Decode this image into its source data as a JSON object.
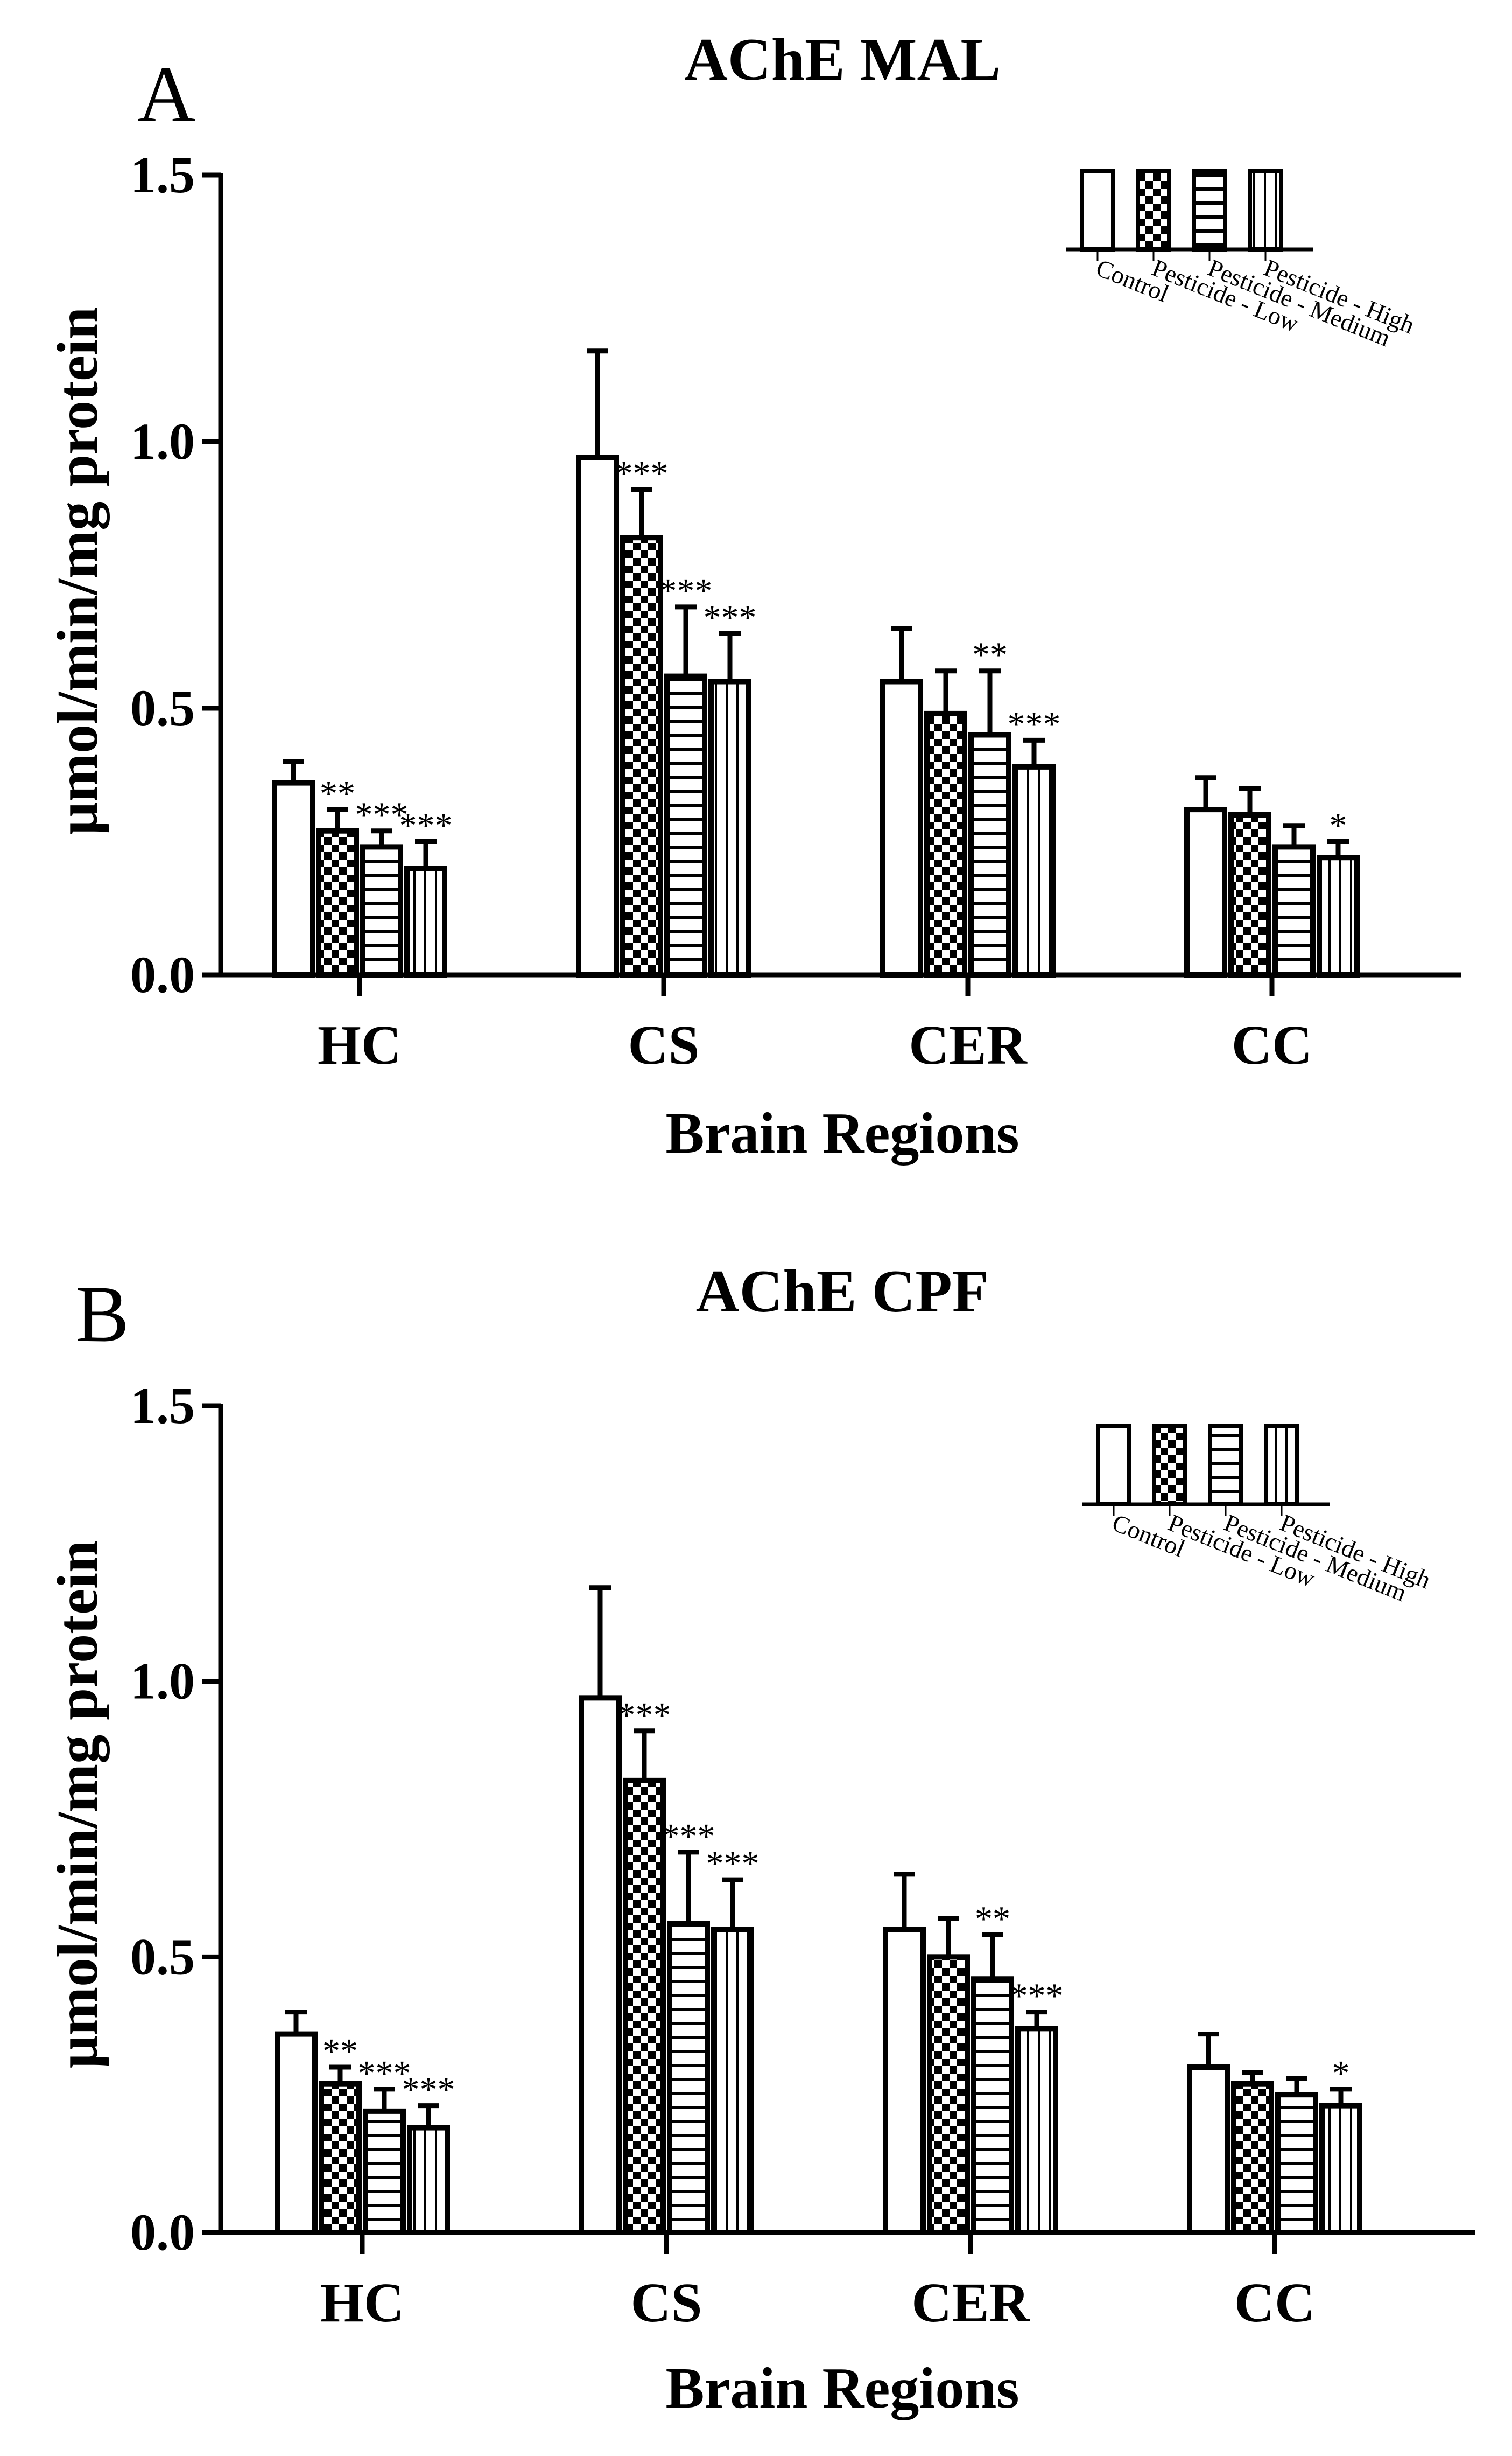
{
  "figure": {
    "panels": [
      "A",
      "B"
    ]
  },
  "chart_data": [
    {
      "panel": "A",
      "type": "bar",
      "title": "AChE MAL",
      "xlabel": "Brain Regions",
      "ylabel": "μmol/min/mg protein",
      "ylim": [
        0,
        1.5
      ],
      "yticks": [
        "0.0",
        "0.5",
        "1.0",
        "1.5"
      ],
      "categories": [
        "HC",
        "CS",
        "CER",
        "CC"
      ],
      "legend_position": "top-right",
      "series": [
        {
          "name": "Control",
          "pattern": "white",
          "values": [
            0.36,
            0.97,
            0.55,
            0.31
          ],
          "errors": [
            0.04,
            0.2,
            0.1,
            0.06
          ],
          "sig": [
            "",
            "",
            "",
            ""
          ]
        },
        {
          "name": "Pesticide - Low",
          "pattern": "checker",
          "values": [
            0.27,
            0.82,
            0.49,
            0.3
          ],
          "errors": [
            0.04,
            0.09,
            0.08,
            0.05
          ],
          "sig": [
            "**",
            "***",
            "",
            ""
          ]
        },
        {
          "name": "Pesticide - Medium",
          "pattern": "hstripe",
          "values": [
            0.24,
            0.56,
            0.45,
            0.24
          ],
          "errors": [
            0.03,
            0.13,
            0.12,
            0.04
          ],
          "sig": [
            "***",
            "***",
            "**",
            ""
          ]
        },
        {
          "name": "Pesticide - High",
          "pattern": "vstripe",
          "values": [
            0.2,
            0.55,
            0.39,
            0.22
          ],
          "errors": [
            0.05,
            0.09,
            0.05,
            0.03
          ],
          "sig": [
            "***",
            "***",
            "***",
            "*"
          ]
        }
      ]
    },
    {
      "panel": "B",
      "type": "bar",
      "title": "AChE CPF",
      "xlabel": "Brain Regions",
      "ylabel": "μmol/min/mg protein",
      "ylim": [
        0,
        1.5
      ],
      "yticks": [
        "0.0",
        "0.5",
        "1.0",
        "1.5"
      ],
      "categories": [
        "HC",
        "CS",
        "CER",
        "CC"
      ],
      "legend_position": "top-right",
      "series": [
        {
          "name": "Control",
          "pattern": "white",
          "values": [
            0.36,
            0.97,
            0.55,
            0.3
          ],
          "errors": [
            0.04,
            0.2,
            0.1,
            0.06
          ],
          "sig": [
            "",
            "",
            "",
            ""
          ]
        },
        {
          "name": "Pesticide - Low",
          "pattern": "checker",
          "values": [
            0.27,
            0.82,
            0.5,
            0.27
          ],
          "errors": [
            0.03,
            0.09,
            0.07,
            0.02
          ],
          "sig": [
            "**",
            "***",
            "",
            ""
          ]
        },
        {
          "name": "Pesticide - Medium",
          "pattern": "hstripe",
          "values": [
            0.22,
            0.56,
            0.46,
            0.25
          ],
          "errors": [
            0.04,
            0.13,
            0.08,
            0.03
          ],
          "sig": [
            "***",
            "***",
            "**",
            ""
          ]
        },
        {
          "name": "Pesticide - High",
          "pattern": "vstripe",
          "values": [
            0.19,
            0.55,
            0.37,
            0.23
          ],
          "errors": [
            0.04,
            0.09,
            0.03,
            0.03
          ],
          "sig": [
            "***",
            "***",
            "***",
            "*"
          ]
        }
      ]
    }
  ]
}
